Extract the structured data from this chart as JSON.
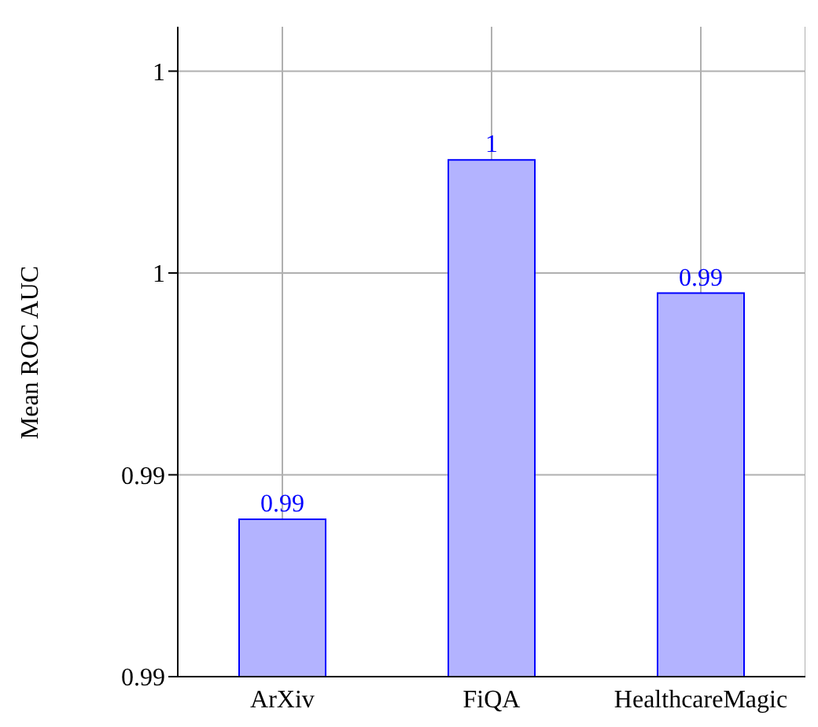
{
  "chart_data": {
    "type": "bar",
    "ylabel": "Mean ROC AUC",
    "categories": [
      "ArXiv",
      "FiQA",
      "HealthcareMagic"
    ],
    "values": [
      0.9889,
      0.9978,
      0.9945
    ],
    "value_labels": [
      "0.99",
      "1",
      "0.99"
    ],
    "color": "#b3b3ff",
    "ylim": [
      0.985,
      1.0011
    ],
    "yticks": [
      {
        "value": 0.985,
        "label": "0.99"
      },
      {
        "value": 0.99,
        "label": "0.99"
      },
      {
        "value": 0.995,
        "label": "1"
      },
      {
        "value": 1.0,
        "label": "1"
      }
    ],
    "grid": true
  }
}
